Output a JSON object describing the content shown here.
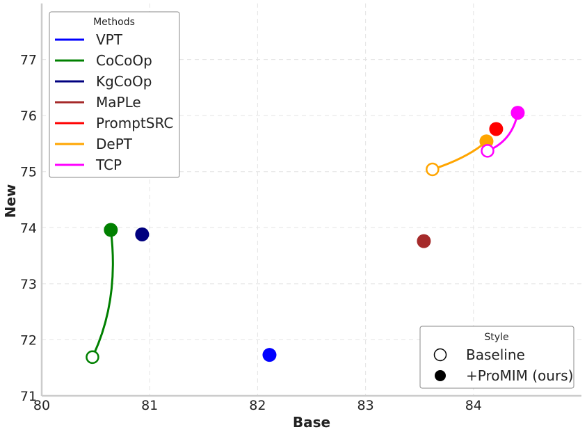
{
  "chart_data": {
    "type": "scatter",
    "xlabel": "Base",
    "ylabel": "New",
    "xlim": [
      80,
      85
    ],
    "ylim": [
      71,
      78
    ],
    "x_ticks": [
      80,
      81,
      82,
      83,
      84
    ],
    "y_ticks": [
      71,
      72,
      73,
      74,
      75,
      76,
      77
    ],
    "grid": true,
    "methods_legend": {
      "title": "Methods",
      "placement": "top-left",
      "items": [
        {
          "name": "VPT",
          "color": "#0000ff"
        },
        {
          "name": "CoCoOp",
          "color": "#008000"
        },
        {
          "name": "KgCoOp",
          "color": "#00007f"
        },
        {
          "name": "MaPLe",
          "color": "#a52a2a"
        },
        {
          "name": "PromptSRC",
          "color": "#ff0000"
        },
        {
          "name": "DePT",
          "color": "#ffa500"
        },
        {
          "name": "TCP",
          "color": "#ff00ff"
        }
      ]
    },
    "style_legend": {
      "title": "Style",
      "placement": "bottom-right",
      "items": [
        {
          "label": "Baseline",
          "marker": "hollow"
        },
        {
          "label": "+ProMIM (ours)",
          "marker": "filled"
        }
      ]
    },
    "points": [
      {
        "method": "VPT",
        "style": "filled",
        "x": 82.11,
        "y": 71.73
      },
      {
        "method": "CoCoOp",
        "style": "hollow",
        "x": 80.47,
        "y": 71.69
      },
      {
        "method": "CoCoOp",
        "style": "filled",
        "x": 80.64,
        "y": 73.96
      },
      {
        "method": "KgCoOp",
        "style": "filled",
        "x": 80.93,
        "y": 73.88
      },
      {
        "method": "MaPLe",
        "style": "filled",
        "x": 83.54,
        "y": 73.76
      },
      {
        "method": "DePT",
        "style": "hollow",
        "x": 83.62,
        "y": 75.04
      },
      {
        "method": "DePT",
        "style": "filled",
        "x": 84.12,
        "y": 75.54
      },
      {
        "method": "TCP",
        "style": "hollow",
        "x": 84.13,
        "y": 75.37
      },
      {
        "method": "PromptSRC",
        "style": "filled",
        "x": 84.21,
        "y": 75.76
      },
      {
        "method": "TCP",
        "style": "filled",
        "x": 84.41,
        "y": 76.05
      }
    ],
    "connectors": [
      {
        "method": "CoCoOp",
        "from": [
          80.47,
          71.69
        ],
        "to": [
          80.64,
          73.96
        ],
        "control": [
          80.72,
          72.7
        ]
      },
      {
        "method": "DePT",
        "from": [
          83.62,
          75.04
        ],
        "to": [
          84.12,
          75.54
        ],
        "control": [
          83.95,
          75.25
        ]
      },
      {
        "method": "TCP",
        "from": [
          84.13,
          75.37
        ],
        "to": [
          84.41,
          76.05
        ],
        "control": [
          84.36,
          75.55
        ]
      }
    ]
  }
}
